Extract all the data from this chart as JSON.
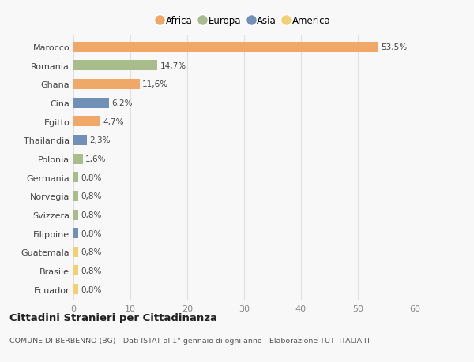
{
  "categories": [
    "Marocco",
    "Romania",
    "Ghana",
    "Cina",
    "Egitto",
    "Thailandia",
    "Polonia",
    "Germania",
    "Norvegia",
    "Svizzera",
    "Filippine",
    "Guatemala",
    "Brasile",
    "Ecuador"
  ],
  "values": [
    53.5,
    14.7,
    11.6,
    6.2,
    4.7,
    2.3,
    1.6,
    0.8,
    0.8,
    0.8,
    0.8,
    0.8,
    0.8,
    0.8
  ],
  "labels": [
    "53,5%",
    "14,7%",
    "11,6%",
    "6,2%",
    "4,7%",
    "2,3%",
    "1,6%",
    "0,8%",
    "0,8%",
    "0,8%",
    "0,8%",
    "0,8%",
    "0,8%",
    "0,8%"
  ],
  "bar_colors": [
    "#f0a868",
    "#a8bc8c",
    "#f0a868",
    "#7090b8",
    "#f0a868",
    "#7090b8",
    "#a8bc8c",
    "#a8bc8c",
    "#a8bc8c",
    "#a8bc8c",
    "#7090b8",
    "#f0d070",
    "#f0d070",
    "#f0d070"
  ],
  "legend_labels": [
    "Africa",
    "Europa",
    "Asia",
    "America"
  ],
  "legend_colors": [
    "#f0a868",
    "#a8bc8c",
    "#7090b8",
    "#f0d070"
  ],
  "title": "Cittadini Stranieri per Cittadinanza",
  "subtitle": "COMUNE DI BERBENNO (BG) - Dati ISTAT al 1° gennaio di ogni anno - Elaborazione TUTTITALIA.IT",
  "xlim": [
    0,
    60
  ],
  "xticks": [
    0,
    10,
    20,
    30,
    40,
    50,
    60
  ],
  "background_color": "#f8f8f8",
  "grid_color": "#e0e0e0"
}
